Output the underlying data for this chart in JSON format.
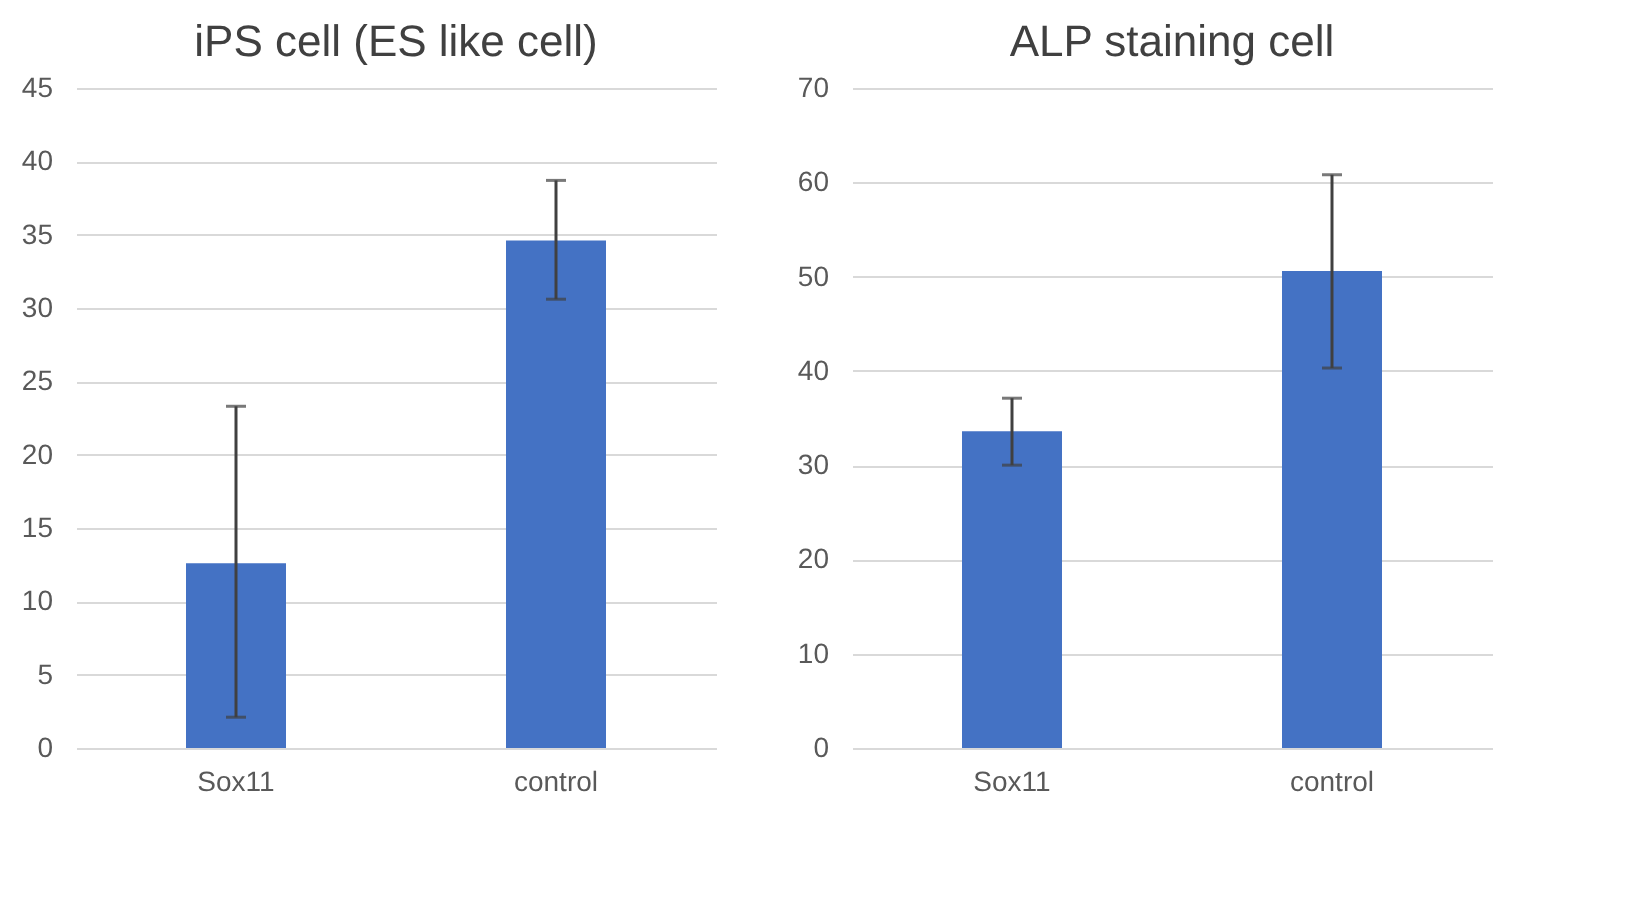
{
  "chart_data": [
    {
      "type": "bar",
      "title": "iPS cell (ES like cell)",
      "categories": [
        "Sox11",
        "control"
      ],
      "values": [
        12.6,
        34.6
      ],
      "color": "#4472c4",
      "errors": [
        [
          2.1,
          23.3
        ],
        [
          30.6,
          38.7
        ]
      ],
      "ylim": [
        0,
        45
      ],
      "yticks": [
        0,
        5,
        10,
        15,
        20,
        25,
        30,
        35,
        40,
        45
      ],
      "grid": "y"
    },
    {
      "type": "bar",
      "title": "ALP staining cell",
      "categories": [
        "Sox11",
        "control"
      ],
      "values": [
        33.6,
        50.6
      ],
      "color": "#4472c4",
      "errors": [
        [
          30.0,
          37.1
        ],
        [
          40.3,
          60.8
        ]
      ],
      "ylim": [
        0,
        70
      ],
      "yticks": [
        0,
        10,
        20,
        30,
        40,
        50,
        60,
        70
      ],
      "grid": "y"
    }
  ]
}
